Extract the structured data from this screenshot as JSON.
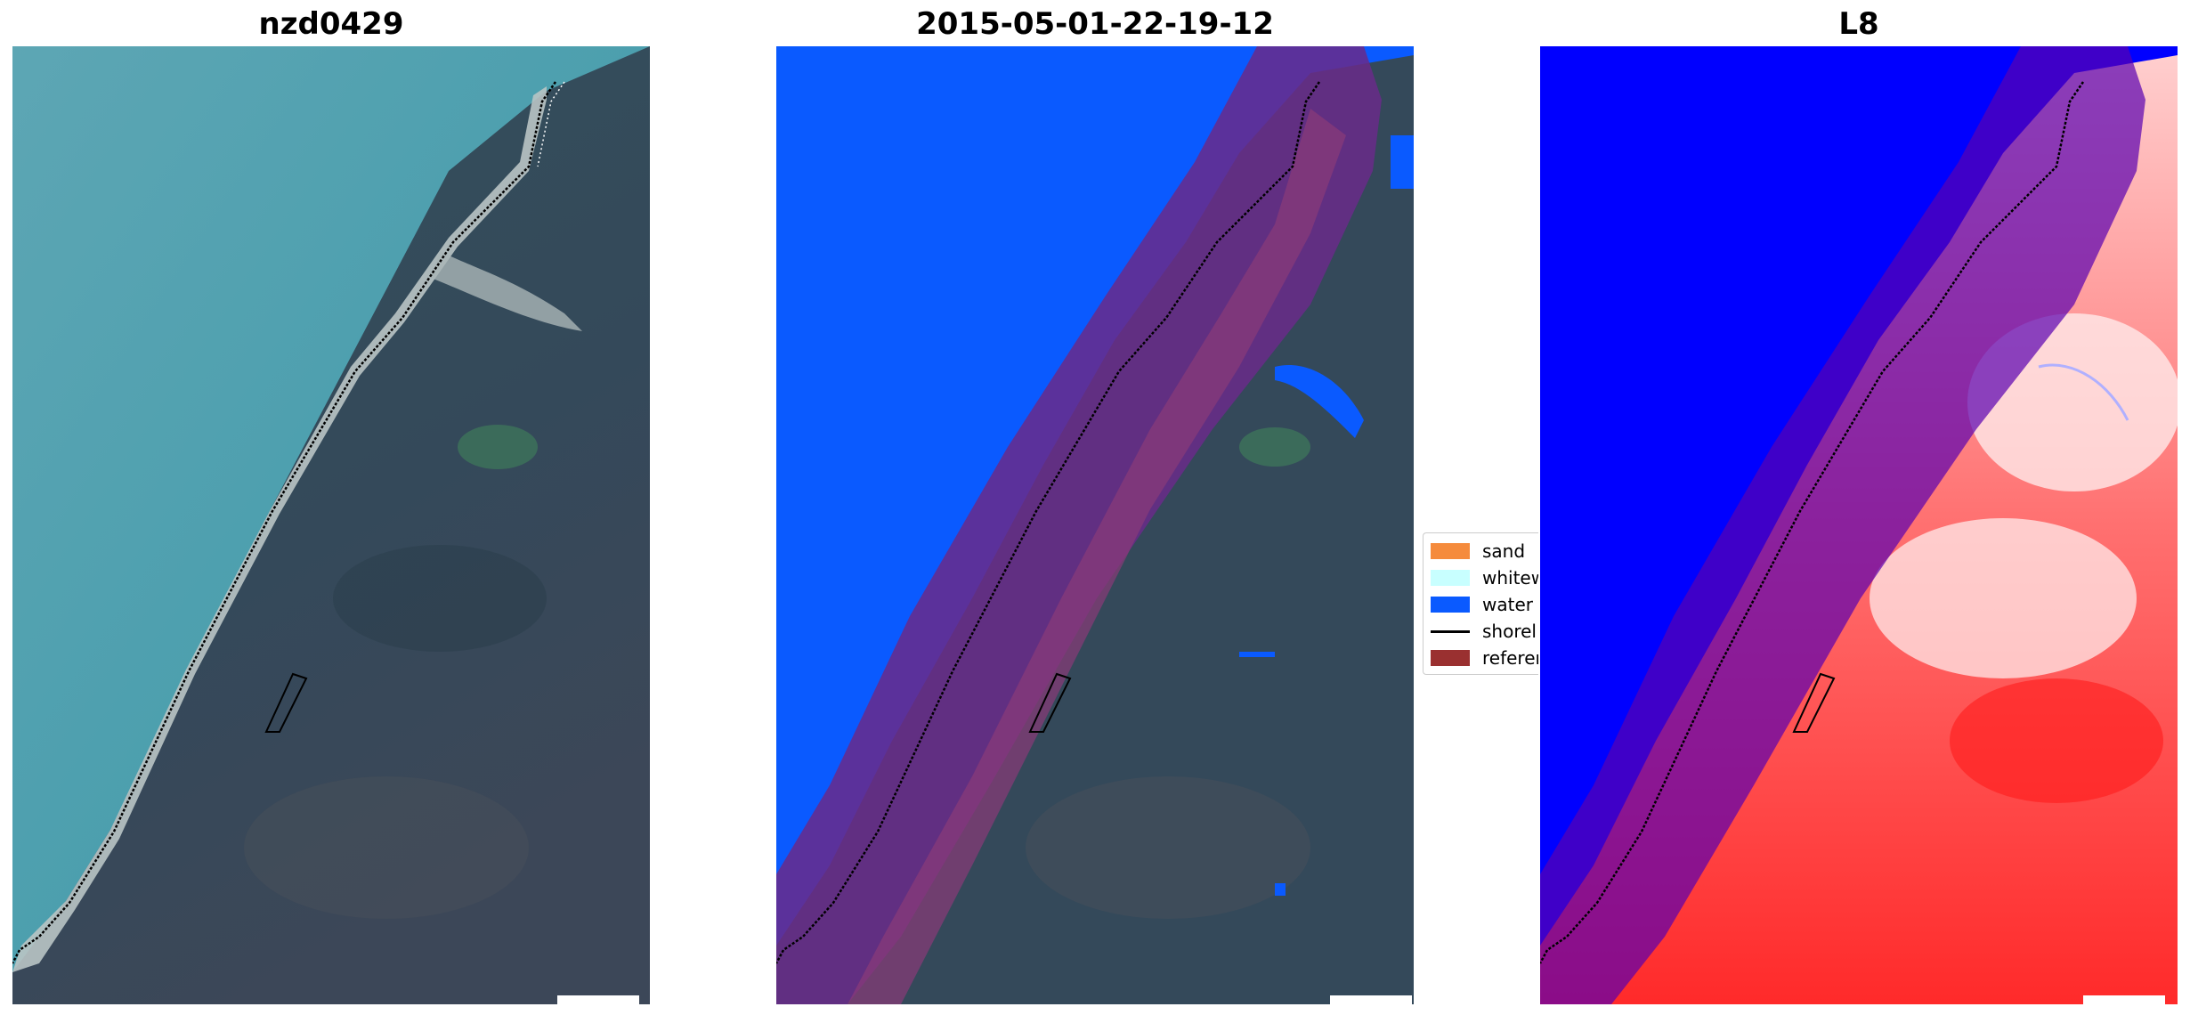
{
  "panels": [
    {
      "title": "nzd0429"
    },
    {
      "title": "2015-05-01-22-19-12"
    },
    {
      "title": "L8"
    }
  ],
  "legend": {
    "items": [
      {
        "label": "sand",
        "color": "#f58b3c"
      },
      {
        "label": "whitew",
        "color": "#c8ffff"
      },
      {
        "label": "water",
        "color": "#0a5aff"
      },
      {
        "label": "shorel",
        "color": "#000000"
      },
      {
        "label": "referen",
        "color": "#9a3030"
      }
    ]
  },
  "colors": {
    "sea": "#4a9eab",
    "land": "#33495a",
    "water_class": "#0a5aff",
    "reference_buffer": "#9a3030",
    "index_water": "#0000ff",
    "index_land": "#ff3030"
  }
}
